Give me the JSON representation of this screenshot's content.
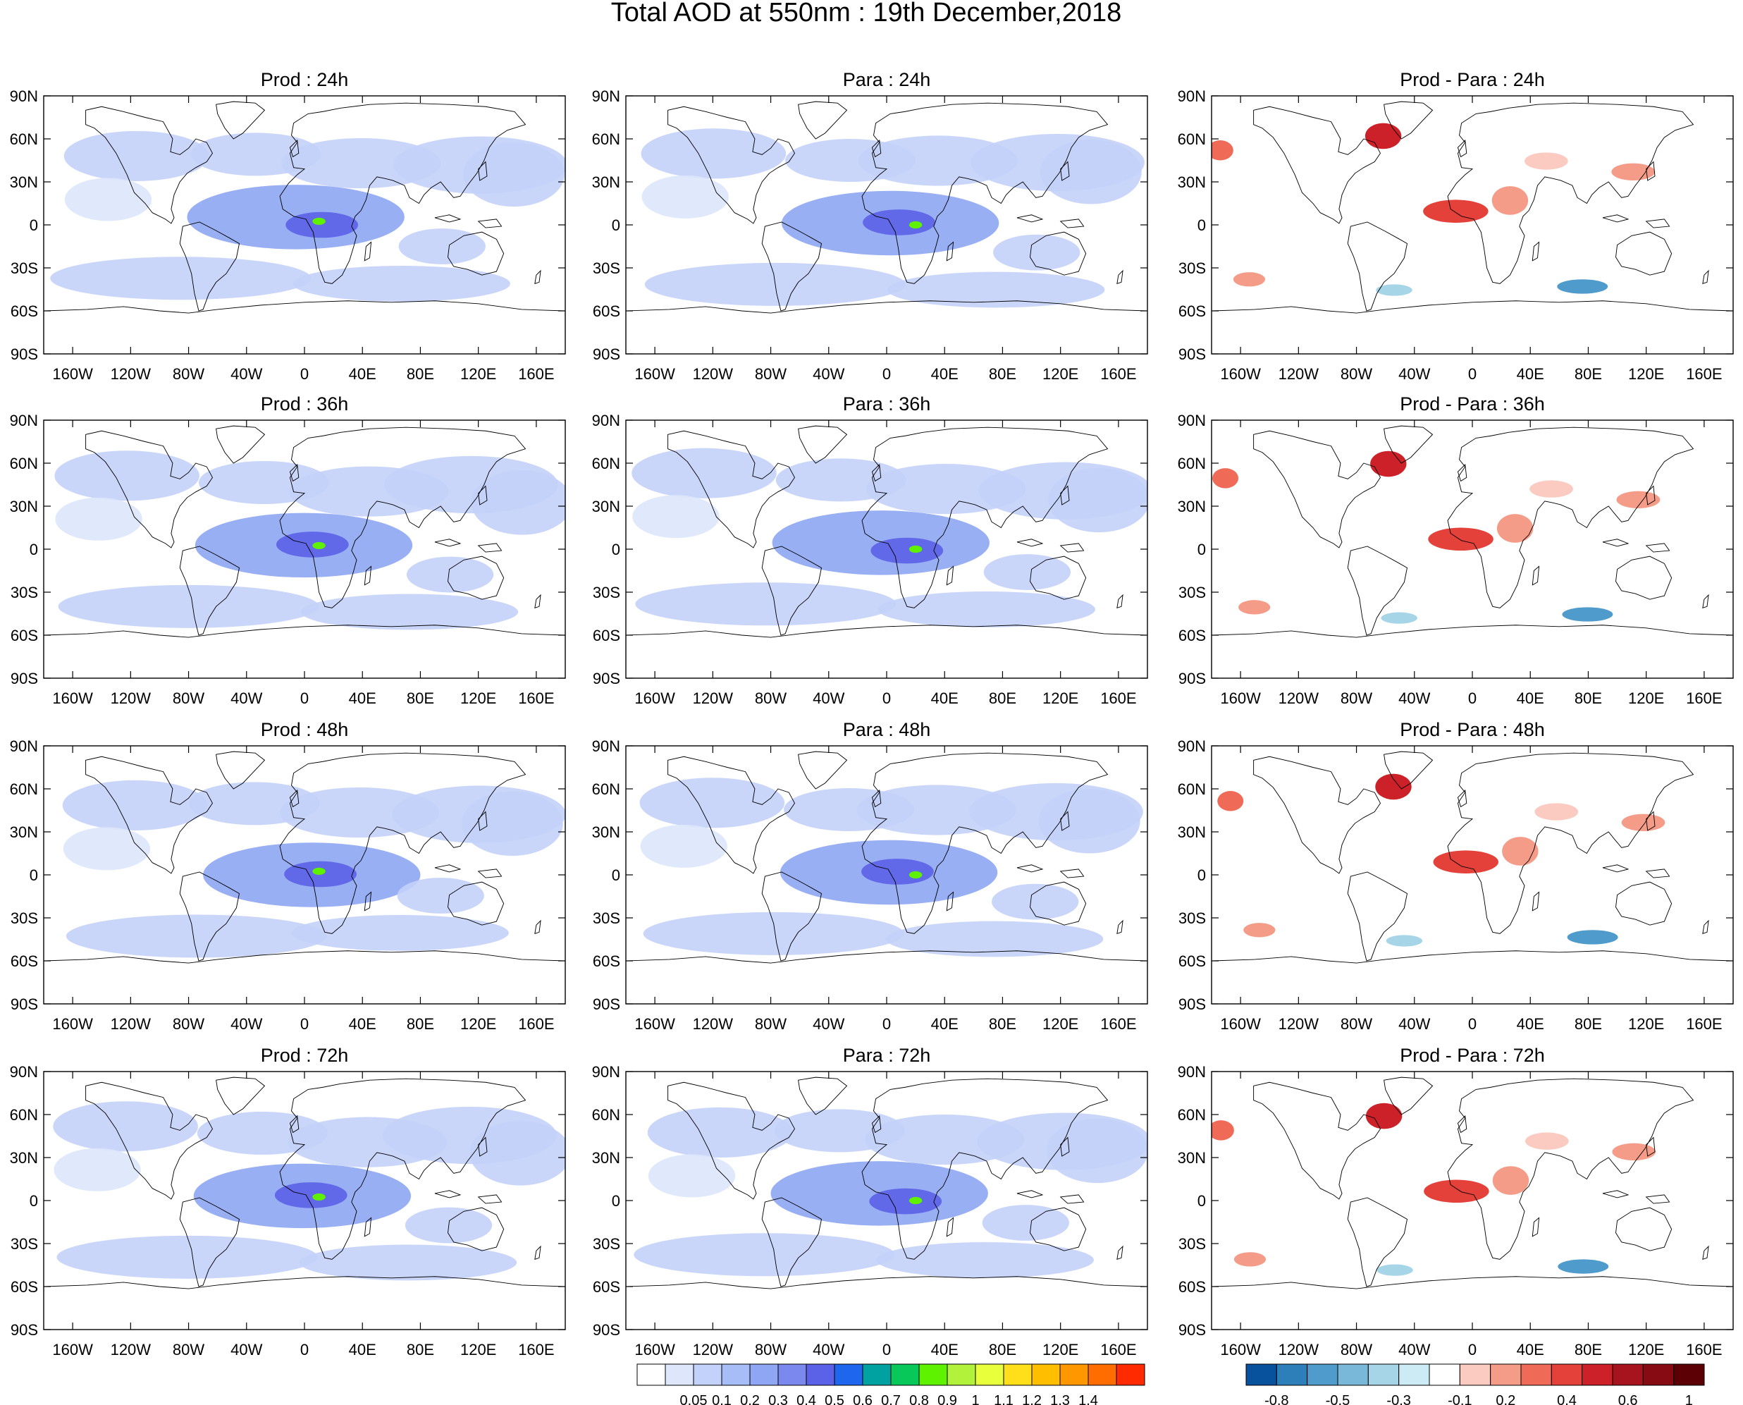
{
  "title": "Total AOD at 550nm : 19th December,2018",
  "lat_ticks": [
    "90N",
    "60N",
    "30N",
    "0",
    "30S",
    "60S",
    "90S"
  ],
  "lon_ticks": [
    "160W",
    "120W",
    "80W",
    "40W",
    "0",
    "40E",
    "80E",
    "120E",
    "160E"
  ],
  "rows": [
    {
      "prod": "Prod : 24h",
      "para": "Para : 24h",
      "diff": "Prod - Para : 24h"
    },
    {
      "prod": "Prod : 36h",
      "para": "Para : 36h",
      "diff": "Prod - Para : 36h"
    },
    {
      "prod": "Prod : 48h",
      "para": "Para : 48h",
      "diff": "Prod - Para : 48h"
    },
    {
      "prod": "Prod : 72h",
      "para": "Para : 72h",
      "diff": "Prod - Para : 72h"
    }
  ],
  "aod_colorbar": {
    "colors": [
      "#ffffff",
      "#dde6fb",
      "#c3d2fa",
      "#a6bdf7",
      "#8ea6f3",
      "#7b88ee",
      "#5c62e8",
      "#1f66ee",
      "#00a1a1",
      "#08c85a",
      "#5ff200",
      "#b3f23a",
      "#e8ff3c",
      "#ffde1a",
      "#ffbf00",
      "#ff9800",
      "#ff6d00",
      "#ff2a00"
    ],
    "labels": [
      "0.05",
      "0.1",
      "0.2",
      "0.3",
      "0.4",
      "0.5",
      "0.6",
      "0.7",
      "0.8",
      "0.9",
      "1",
      "1.1",
      "1.2",
      "1.3",
      "1.4"
    ]
  },
  "diff_colorbar": {
    "colors": [
      "#08519c",
      "#2c7fb8",
      "#4f9bcc",
      "#7ab8da",
      "#a7d5e8",
      "#cdebf4",
      "#ffffff",
      "#fbcac0",
      "#f59c88",
      "#ef6b57",
      "#e34139",
      "#cc2128",
      "#a8141d",
      "#860b13",
      "#5c0006"
    ],
    "labels": [
      "-0.8",
      "-0.5",
      "-0.3",
      "-0.1",
      "0.2",
      "0.4",
      "0.6",
      "1"
    ]
  }
}
